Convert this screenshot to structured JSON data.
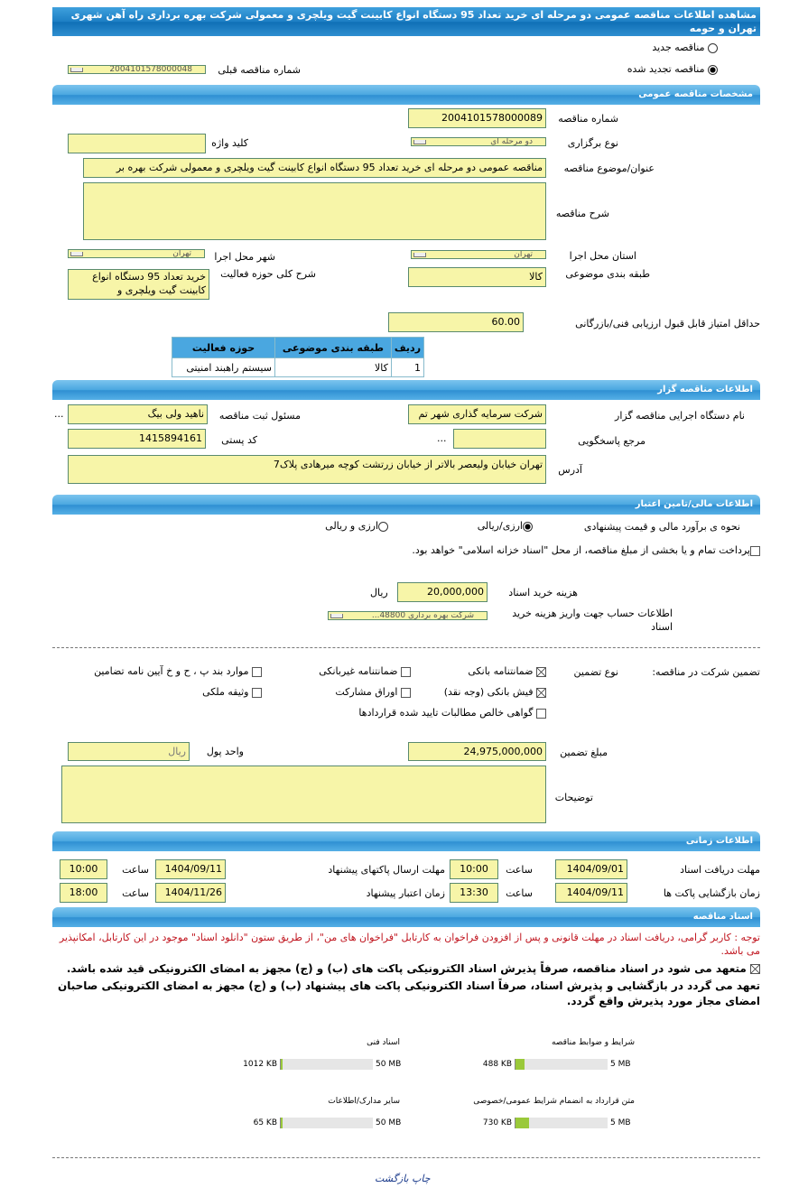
{
  "title": "مشاهده اطلاعات مناقصه عمومی دو مرحله ای خرید تعداد 95 دستگاه انواع کابینت گیت ویلچری و معمولی شرکت بهره برداری راه آهن شهری تهران و حومه",
  "tender_type": {
    "new_label": "مناقصه جدید",
    "renewed_label": "مناقصه تجدید شده",
    "selected": "renewed",
    "prev_number_label": "شماره مناقصه قبلی",
    "prev_number": "2004101578000048"
  },
  "general": {
    "header": "مشخصات مناقصه عمومی",
    "number_label": "شماره مناقصه",
    "number": "2004101578000089",
    "holding_type_label": "نوع برگزاری",
    "holding_type": "دو مرحله ای",
    "keyword_label": "کلید واژه",
    "keyword": "",
    "subject_label": "عنوان/موضوع مناقصه",
    "subject": "مناقصه عمومی دو مرحله ای خرید تعداد 95 دستگاه انواع کابینت گیت ویلچری و معمولی شرکت بهره بر",
    "description_label": "شرح مناقصه",
    "description": "",
    "province_label": "استان محل اجرا",
    "province": "تهران",
    "city_label": "شهر محل اجرا",
    "city": "تهران",
    "category_label": "طبقه بندی موضوعی",
    "category": "کالا",
    "activity_label": "شرح کلی حوزه فعالیت",
    "activity": "خرید تعداد 95 دستگاه انواع کابینت گیت ویلچری و",
    "min_score_label": "حداقل امتیاز قابل قبول ارزیابی فنی/بازرگانی",
    "min_score": "60.00",
    "table": {
      "headers": [
        "ردیف",
        "طبقه بندی موضوعی",
        "حوزه فعالیت"
      ],
      "rows": [
        [
          "1",
          "کالا",
          "سیستم راهبند امنیتی"
        ]
      ]
    }
  },
  "organizer": {
    "header": "اطلاعات مناقصه گزار",
    "org_label": "نام دستگاه اجرایی مناقصه گزار",
    "org": "شرکت سرمایه گذاری شهر تم",
    "registrar_label": "مسئول ثبت مناقصه",
    "registrar": "ناهید ولی بیگ",
    "reference_label": "مرجع پاسخگویی",
    "reference": "",
    "postal_label": "کد پستی",
    "postal": "1415894161",
    "address_label": "آدرس",
    "address": "تهران خیابان ولیعصر بالاتر از خیابان زرتشت کوچه میرهادی پلاک7",
    "more": "..."
  },
  "finance": {
    "header": "اطلاعات مالی/تامین اعتبار",
    "method_label": "نحوه ی برآورد مالی و قیمت پیشنهادی",
    "opt1": "ارزی/ریالی",
    "opt2": "ارزی و ریالی",
    "selected": "opt1",
    "treasury_text": "پرداخت تمام و یا بخشی از مبلغ مناقصه، از محل \"اسناد خزانه اسلامی\" خواهد بود.",
    "treasury_checked": false,
    "doc_fee_label": "هزینه خرید اسناد",
    "doc_fee": "20,000,000",
    "currency": "ریال",
    "account_label": "اطلاعات حساب جهت واریز هزینه خرید اسناد",
    "account": "شرکت بهره برداری 48800..."
  },
  "guarantee": {
    "label": "تضمین شرکت در مناقصه:",
    "type_label": "نوع تضمین",
    "options": [
      {
        "label": "ضمانتنامه بانکی",
        "checked": true
      },
      {
        "label": "ضمانتنامه غیربانکی",
        "checked": false
      },
      {
        "label": "موارد بند پ ، ح و خ آیین نامه تضامین",
        "checked": false
      },
      {
        "label": "فیش بانکی (وجه نقد)",
        "checked": true
      },
      {
        "label": "اوراق مشارکت",
        "checked": false
      },
      {
        "label": "وثیقه ملکی",
        "checked": false
      },
      {
        "label": "گواهی خالص مطالبات تایید شده قراردادها",
        "checked": false
      }
    ],
    "amount_label": "مبلغ تضمین",
    "amount": "24,975,000,000",
    "unit_label": "واحد پول",
    "unit": "ریال",
    "notes_label": "توضیحات",
    "notes": ""
  },
  "timing": {
    "header": "اطلاعات زمانی",
    "time_label": "ساعت",
    "doc_deadline_label": "مهلت دریافت اسناد",
    "doc_deadline": "1404/09/01",
    "doc_deadline_time": "10:00",
    "submit_label": "مهلت ارسال پاکتهای پیشنهاد",
    "submit": "1404/09/11",
    "submit_time": "10:00",
    "opening_label": "زمان بازگشایی پاکت ها",
    "opening": "1404/09/11",
    "opening_time": "13:30",
    "validity_label": "زمان اعتبار پیشنهاد",
    "validity": "1404/11/26",
    "validity_time": "18:00"
  },
  "documents": {
    "header": "اسناد مناقصه",
    "notice": "توجه : کاربر گرامی، دریافت اسناد در مهلت قانونی و پس از افزودن فراخوان به کارتابل \"فراخوان های من\"، از طریق ستون \"دانلود اسناد\" موجود در این کارتابل، امکانپذیر می باشد.",
    "commit1": "متعهد می شود در اسناد مناقصه، صرفاً پذیرش اسناد الکترونیکی پاکت های (ب) و (ج) مجهز به امضای الکترونیکی قید شده باشد.",
    "commit2": "تعهد می گردد در بازگشایی و پذیرش اسناد، صرفاً اسناد الکترونیکی پاکت های پیشنهاد (ب) و (ج) مجهز به امضای الکترونیکی صاحبان امضای مجاز مورد پذیرش واقع گردد.",
    "files": [
      {
        "label": "شرایط و ضوابط مناقصه",
        "size": "488 KB",
        "max": "5 MB",
        "fraction": 0.095
      },
      {
        "label": "اسناد فنی",
        "size": "1012 KB",
        "max": "50 MB",
        "fraction": 0.02
      },
      {
        "label": "متن قرارداد به انضمام شرایط عمومی/خصوصی",
        "size": "730 KB",
        "max": "5 MB",
        "fraction": 0.143
      },
      {
        "label": "سایر مدارک/اطلاعات",
        "size": "65 KB",
        "max": "50 MB",
        "fraction": 0.001
      }
    ]
  },
  "footer": {
    "print": "چاپ",
    "back": "بازگشت"
  },
  "watermark": "ParsNamadData 021-88349670-5",
  "colors": {
    "header": "#4aa7e0",
    "field": "#f7f5a8",
    "progress": "#9ac93a",
    "notice": "#c0141e"
  }
}
